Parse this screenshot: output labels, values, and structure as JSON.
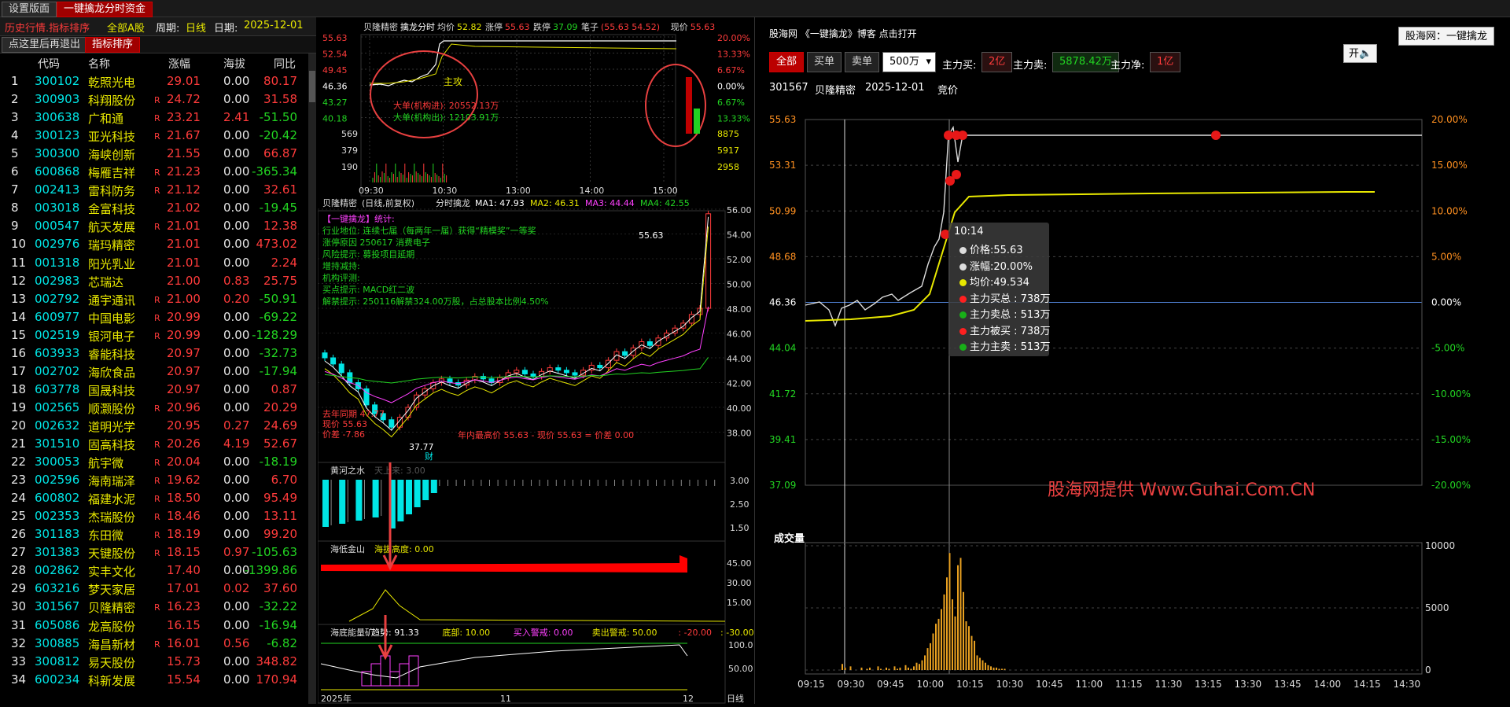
{
  "top_tabs": [
    "设置版面",
    "一键擒龙分时资金"
  ],
  "left": {
    "toolbar": {
      "title": "历史行情.指标排序",
      "scope": "全部A股",
      "period_label": "周期:",
      "period": "日线",
      "date_label": "日期:",
      "date": "2025-12-01"
    },
    "tab_row": [
      "点这里后再退出",
      "指标排序"
    ],
    "headers": [
      "代码",
      "名称",
      "涨幅",
      "海拔",
      "同比"
    ],
    "rows": [
      {
        "n": "1",
        "code": "300102",
        "name": "乾照光电",
        "chg": "29.01",
        "r": "",
        "hb": "0.00",
        "tb": "80.17"
      },
      {
        "n": "2",
        "code": "300903",
        "name": "科翔股份",
        "chg": "24.72",
        "r": "R",
        "hb": "0.00",
        "tb": "31.58"
      },
      {
        "n": "3",
        "code": "300638",
        "name": "广和通",
        "chg": "23.21",
        "r": "R",
        "hb": "2.41",
        "tb": "-51.50"
      },
      {
        "n": "4",
        "code": "300123",
        "name": "亚光科技",
        "chg": "21.67",
        "r": "R",
        "hb": "0.00",
        "tb": "-20.42"
      },
      {
        "n": "5",
        "code": "300300",
        "name": "海峡创新",
        "chg": "21.55",
        "r": "",
        "hb": "0.00",
        "tb": "66.87"
      },
      {
        "n": "6",
        "code": "600868",
        "name": "梅雁吉祥",
        "chg": "21.23",
        "r": "R",
        "hb": "0.00",
        "tb": "-365.34"
      },
      {
        "n": "7",
        "code": "002413",
        "name": "雷科防务",
        "chg": "21.12",
        "r": "R",
        "hb": "0.00",
        "tb": "32.61"
      },
      {
        "n": "8",
        "code": "003018",
        "name": "金富科技",
        "chg": "21.02",
        "r": "",
        "hb": "0.00",
        "tb": "-19.45"
      },
      {
        "n": "9",
        "code": "000547",
        "name": "航天发展",
        "chg": "21.01",
        "r": "R",
        "hb": "0.00",
        "tb": "12.38"
      },
      {
        "n": "10",
        "code": "002976",
        "name": "瑞玛精密",
        "chg": "21.01",
        "r": "",
        "hb": "0.00",
        "tb": "473.02"
      },
      {
        "n": "11",
        "code": "001318",
        "name": "阳光乳业",
        "chg": "21.01",
        "r": "",
        "hb": "0.00",
        "tb": "2.24"
      },
      {
        "n": "12",
        "code": "002983",
        "name": "芯瑞达",
        "chg": "21.00",
        "r": "",
        "hb": "0.83",
        "tb": "25.75"
      },
      {
        "n": "13",
        "code": "002792",
        "name": "通宇通讯",
        "chg": "21.00",
        "r": "R",
        "hb": "0.20",
        "tb": "-50.91"
      },
      {
        "n": "14",
        "code": "600977",
        "name": "中国电影",
        "chg": "20.99",
        "r": "R",
        "hb": "0.00",
        "tb": "-69.22"
      },
      {
        "n": "15",
        "code": "002519",
        "name": "银河电子",
        "chg": "20.99",
        "r": "R",
        "hb": "0.00",
        "tb": "-128.29"
      },
      {
        "n": "16",
        "code": "603933",
        "name": "睿能科技",
        "chg": "20.97",
        "r": "",
        "hb": "0.00",
        "tb": "-32.73"
      },
      {
        "n": "17",
        "code": "002702",
        "name": "海欣食品",
        "chg": "20.97",
        "r": "",
        "hb": "0.00",
        "tb": "-17.94"
      },
      {
        "n": "18",
        "code": "603778",
        "name": "国晟科技",
        "chg": "20.97",
        "r": "",
        "hb": "0.00",
        "tb": "0.87"
      },
      {
        "n": "19",
        "code": "002565",
        "name": "顺灏股份",
        "chg": "20.96",
        "r": "R",
        "hb": "0.00",
        "tb": "20.29"
      },
      {
        "n": "20",
        "code": "002632",
        "name": "道明光学",
        "chg": "20.95",
        "r": "",
        "hb": "0.27",
        "tb": "24.69"
      },
      {
        "n": "21",
        "code": "301510",
        "name": "固高科技",
        "chg": "20.26",
        "r": "R",
        "hb": "4.19",
        "tb": "52.67"
      },
      {
        "n": "22",
        "code": "300053",
        "name": "航宇微",
        "chg": "20.04",
        "r": "R",
        "hb": "0.00",
        "tb": "-18.19"
      },
      {
        "n": "23",
        "code": "002596",
        "name": "海南瑞泽",
        "chg": "19.62",
        "r": "R",
        "hb": "0.00",
        "tb": "6.70"
      },
      {
        "n": "24",
        "code": "600802",
        "name": "福建水泥",
        "chg": "18.50",
        "r": "R",
        "hb": "0.00",
        "tb": "95.49"
      },
      {
        "n": "25",
        "code": "002353",
        "name": "杰瑞股份",
        "chg": "18.46",
        "r": "R",
        "hb": "0.00",
        "tb": "13.11"
      },
      {
        "n": "26",
        "code": "301183",
        "name": "东田微",
        "chg": "18.19",
        "r": "R",
        "hb": "0.00",
        "tb": "99.20"
      },
      {
        "n": "27",
        "code": "301383",
        "name": "天键股份",
        "chg": "18.15",
        "r": "R",
        "hb": "0.97",
        "tb": "-105.63"
      },
      {
        "n": "28",
        "code": "002862",
        "name": "实丰文化",
        "chg": "17.40",
        "r": "",
        "hb": "0.00",
        "tb": "-1399.86"
      },
      {
        "n": "29",
        "code": "603216",
        "name": "梦天家居",
        "chg": "17.01",
        "r": "",
        "hb": "0.02",
        "tb": "37.60"
      },
      {
        "n": "30",
        "code": "301567",
        "name": "贝隆精密",
        "chg": "16.23",
        "r": "R",
        "hb": "0.00",
        "tb": "-32.22"
      },
      {
        "n": "31",
        "code": "605086",
        "name": "龙高股份",
        "chg": "16.15",
        "r": "",
        "hb": "0.00",
        "tb": "-16.94"
      },
      {
        "n": "32",
        "code": "300885",
        "name": "海昌新材",
        "chg": "16.01",
        "r": "R",
        "hb": "0.56",
        "tb": "-6.82"
      },
      {
        "n": "33",
        "code": "300812",
        "name": "易天股份",
        "chg": "15.73",
        "r": "",
        "hb": "0.00",
        "tb": "348.82"
      },
      {
        "n": "34",
        "code": "600234",
        "name": "科新发展",
        "chg": "15.54",
        "r": "",
        "hb": "0.00",
        "tb": "170.94"
      }
    ]
  },
  "mid": {
    "intraday_header": {
      "name": "贝隆精密",
      "label": "擒龙分时",
      "avg_label": "均价",
      "avg": "52.82",
      "zt_label": "涨停",
      "zt": "55.63",
      "dt_label": "跌停",
      "dt": "37.09",
      "bi_label": "笔子",
      "bi": "(55.63 54.52)",
      "xj_label": "现价",
      "xj": "55.63"
    },
    "intraday_price_ticks": [
      "55.63",
      "52.54",
      "49.45",
      "46.36",
      "43.27",
      "40.18"
    ],
    "intraday_pct_ticks": [
      "20.00%",
      "13.33%",
      "6.67%",
      "0.00%",
      "6.67%",
      "13.33%"
    ],
    "intraday_vol_ticks": [
      "569",
      "379",
      "190"
    ],
    "intraday_vol_ticks_right": [
      "8875",
      "5917",
      "2958"
    ],
    "intraday_time_ticks": [
      "09:30",
      "10:30",
      "13:00",
      "14:00",
      "15:00"
    ],
    "intraday_marker": "主攻",
    "intraday_notes": [
      "大单(机构进): 20552.13万",
      "大单(机构出): 12103.91万"
    ],
    "kline_header": {
      "name": "贝隆精密",
      "mode": "(日线,前复权)",
      "label": "分时擒龙",
      "ma1": "MA1: 47.93",
      "ma2": "MA2: 46.31",
      "ma3": "MA3: 44.44",
      "ma4": "MA4: 42.55"
    },
    "kline_price_ticks": [
      "56.00",
      "54.00",
      "52.00",
      "50.00",
      "48.00",
      "46.00",
      "44.00",
      "42.00",
      "40.00",
      "38.00"
    ],
    "kline_info": [
      "【一键擒龙】统计:",
      "行业地位: 连续七届（每两年一届）获得“精模奖”一等奖",
      "涨停原因 250617 消费电子",
      "风险提示: 募投项目延期",
      "增持减持:",
      "机构评测:",
      "买点提示: MACD红二波",
      "解禁提示: 250116解禁324.00万股，占总股本比例4.50%"
    ],
    "kline_high": "55.63",
    "kline_low": "37.77",
    "kline_low_notes": [
      "去年同期 47.77",
      "现价 55.63",
      "价差 -7.86"
    ],
    "kline_low_right": "年内最高价 55.63 -    现价 55.63  =  价差 0.00",
    "kline_cai": "财",
    "sub1": {
      "title": "黄河之水",
      "sub": "天上来: 3.00",
      "ticks": [
        "3.00",
        "2.50",
        "1.50"
      ]
    },
    "sub2": {
      "title": "海低金山",
      "sub": "海拔高度: 0.00",
      "ticks": [
        "45.00",
        "30.00",
        "15.00"
      ]
    },
    "sub3": {
      "title": "海底能量矿",
      "sub": "趋势: 91.33",
      "bottom": "底部: 10.00",
      "buy": "买入警戒: 0.00",
      "sell": "卖出警戒: 50.00",
      "v1": ": -20.00",
      "v2": ": -30.00",
      "ticks": [
        "100.0",
        "50.00"
      ]
    },
    "xaxis": [
      "2025年",
      "11",
      "12"
    ],
    "period_btn": "日线"
  },
  "right": {
    "title": "股海网 《一键擒龙》博客 点击打开",
    "brand_btn": "股海网：一键擒龙",
    "switch_btn": "开",
    "filters": {
      "all": "全部",
      "buy": "买单",
      "sell": "卖单",
      "size": "500万"
    },
    "stats": {
      "buy_label": "主力买:",
      "buy": "2亿",
      "sell_label": "主力卖:",
      "sell": "5878.42万",
      "net_label": "主力净:",
      "net": "1亿"
    },
    "stock": {
      "code": "301567",
      "name": "贝隆精密",
      "date": "2025-12-01",
      "state": "竞价"
    },
    "price_ticks": [
      "55.63",
      "53.31",
      "50.99",
      "48.68",
      "46.36",
      "44.04",
      "41.72",
      "39.41",
      "37.09"
    ],
    "pct_ticks": [
      "20.00%",
      "15.00%",
      "10.00%",
      "5.00%",
      "0.00%",
      "-5.00%",
      "-10.00%",
      "-15.00%",
      "-20.00%"
    ],
    "watermark": "股海网提供 Www.Guhai.Com.CN",
    "vol_title": "成交量",
    "vol_ticks": [
      "10000",
      "5000",
      "0"
    ],
    "time_ticks": [
      "09:15",
      "09:30",
      "09:45",
      "10:00",
      "10:15",
      "10:30",
      "10:45",
      "11:00",
      "11:15",
      "11:30",
      "13:15",
      "13:30",
      "13:45",
      "14:00",
      "14:15",
      "14:30"
    ],
    "tooltip": {
      "time": "10:14",
      "rows": [
        {
          "c": "#dddddd",
          "t": "价格:55.63"
        },
        {
          "c": "#dddddd",
          "t": "涨幅:20.00%"
        },
        {
          "c": "#e8e800",
          "t": "均价:49.534"
        },
        {
          "c": "#ff2020",
          "t": "主力买总 : 738万"
        },
        {
          "c": "#18b018",
          "t": "主力卖总 : 513万"
        },
        {
          "c": "#ff2020",
          "t": "主力被买 : 738万"
        },
        {
          "c": "#18b018",
          "t": "主力主卖 : 513万"
        }
      ]
    }
  },
  "colors": {
    "up": "#ff3b3b",
    "down": "#22d422",
    "accent": "#a00000",
    "avg_line": "#e8e800"
  }
}
